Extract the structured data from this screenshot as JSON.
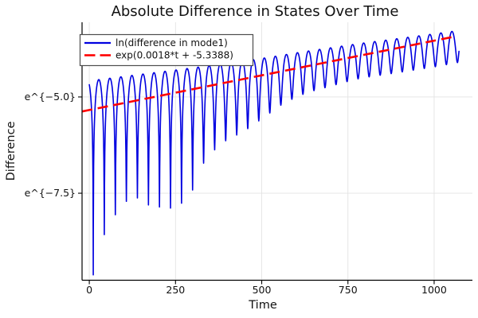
{
  "chart_data": {
    "type": "line",
    "title": "Absolute Difference in States Over Time",
    "xlabel": "Time",
    "ylabel": "Difference",
    "x_axis": {
      "ticks": [
        0,
        250,
        500,
        750,
        1000
      ],
      "tick_labels": [
        "0",
        "250",
        "500",
        "750",
        "1000"
      ],
      "lim": [
        -21,
        1111
      ]
    },
    "y_axis": {
      "scale": "log-e",
      "ticks_ln": [
        -5.0,
        -7.5
      ],
      "tick_labels": [
        "e^{−5.0}",
        "e^{−7.5}"
      ],
      "lim_ln": [
        -9.76,
        -3.06
      ]
    },
    "grid": true,
    "legend_position": "top-left",
    "series": [
      {
        "name": "ln(difference in mode1)",
        "color": "#0000e0",
        "style": "solid",
        "kind": "oscillating-absolute-difference",
        "t_range": [
          0,
          1072
        ],
        "oscillation_half_period": 32,
        "first_minimum_t": 11.5,
        "envelope_ln": {
          "intercept": -4.58,
          "slope": 0.00112
        },
        "minima_ln_profile": [
          [
            11.5,
            -9.62
          ],
          [
            42,
            -8.6
          ],
          [
            72,
            -8.1
          ],
          [
            104,
            -7.72
          ],
          [
            139,
            -7.62
          ],
          [
            169,
            -7.8
          ],
          [
            199,
            -7.85
          ],
          [
            231,
            -7.9
          ],
          [
            263,
            -7.8
          ],
          [
            296,
            -7.5
          ],
          [
            326,
            -6.78
          ],
          [
            360,
            -6.4
          ],
          [
            393,
            -6.15
          ],
          [
            425,
            -6.0
          ],
          [
            455,
            -5.85
          ],
          [
            487,
            -5.65
          ],
          [
            520,
            -5.44
          ],
          [
            550,
            -5.24
          ],
          [
            600,
            -5.0
          ],
          [
            637,
            -4.87
          ],
          [
            700,
            -4.72
          ],
          [
            764,
            -4.56
          ],
          [
            795,
            -4.5
          ],
          [
            900,
            -4.36
          ],
          [
            1000,
            -4.22
          ],
          [
            1072,
            -4.1
          ]
        ]
      },
      {
        "name": "exp(0.0018*t + -5.3388)",
        "color": "#ff0000",
        "style": "dashed",
        "kind": "exponential-fit",
        "slope": 0.0018,
        "intercept_ln": -5.3388,
        "t_range": [
          -21,
          1050
        ]
      }
    ]
  },
  "colors": {
    "background": "#ffffff",
    "axis": "#000000",
    "grid": "#e3e3e3",
    "legend_border": "#4d4d4d",
    "text": "#111111"
  }
}
